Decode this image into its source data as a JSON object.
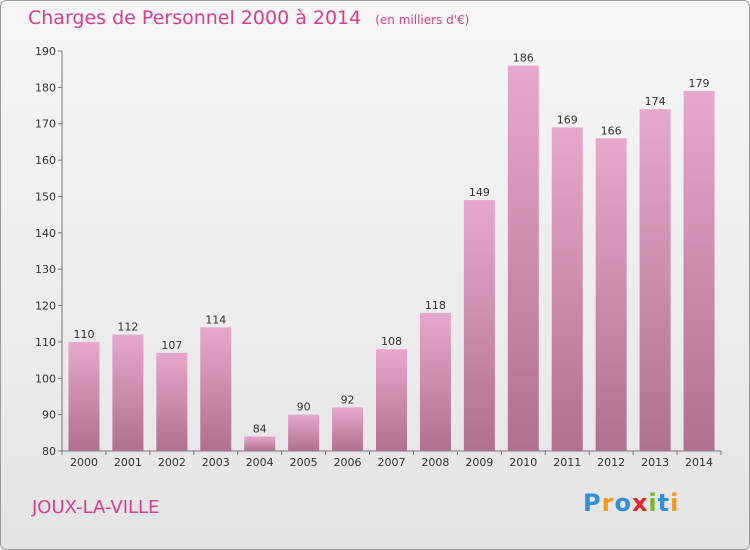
{
  "title": "Charges de Personnel 2000 à 2014",
  "subtitle": "(en milliers d'€)",
  "commune": "JOUX-LA-VILLE",
  "logo": {
    "text": "Proxiti",
    "letters": [
      {
        "ch": "P",
        "color": "#2f8fd8"
      },
      {
        "ch": "r",
        "color": "#f29a1f"
      },
      {
        "ch": "o",
        "color": "#2f8fd8"
      },
      {
        "ch": "x",
        "color": "#e2262a"
      },
      {
        "ch": "i",
        "color": "#7ab929"
      },
      {
        "ch": "t",
        "color": "#2f8fd8"
      },
      {
        "ch": "i",
        "color": "#f29a1f"
      }
    ]
  },
  "colors": {
    "bar_top": "#e6a8cc",
    "bar_bottom": "#b0708f",
    "accent": "#d43f8f"
  },
  "chart_data": {
    "type": "bar",
    "categories": [
      "2000",
      "2001",
      "2002",
      "2003",
      "2004",
      "2005",
      "2006",
      "2007",
      "2008",
      "2009",
      "2010",
      "2011",
      "2012",
      "2013",
      "2014"
    ],
    "values": [
      110,
      112,
      107,
      114,
      84,
      90,
      92,
      108,
      118,
      149,
      186,
      169,
      166,
      174,
      179
    ],
    "ylim": [
      80,
      190
    ],
    "yticks": [
      80,
      90,
      100,
      110,
      120,
      130,
      140,
      150,
      160,
      170,
      180,
      190
    ],
    "grid": false,
    "data_labels": true
  }
}
